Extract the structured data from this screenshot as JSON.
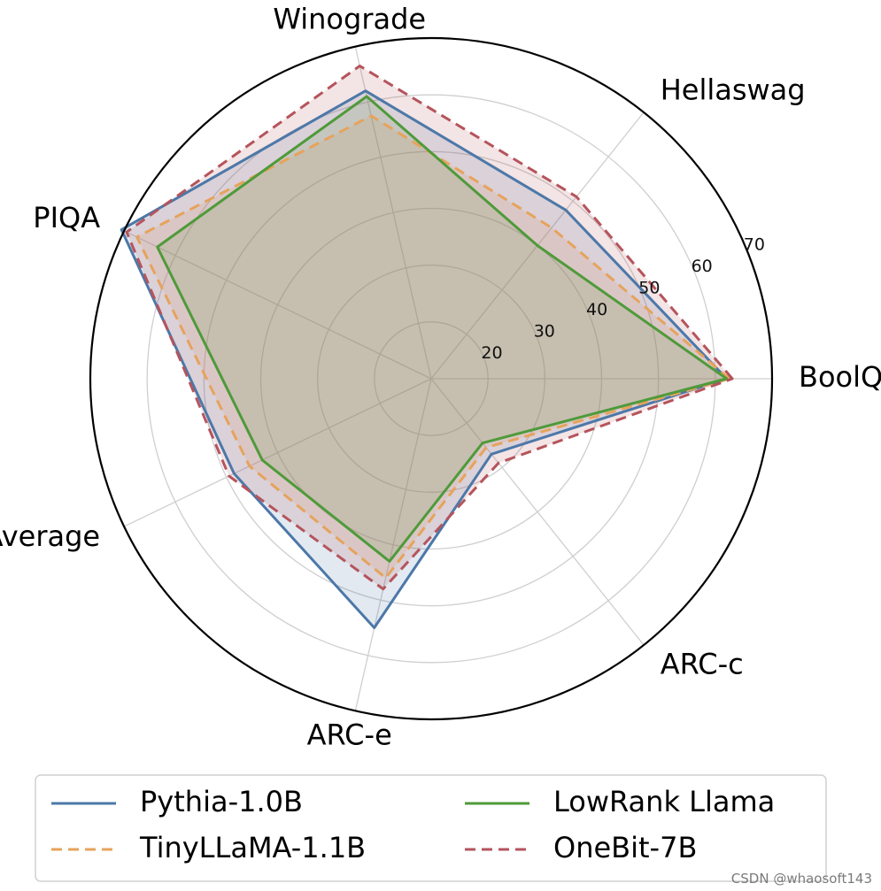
{
  "chart_data": {
    "type": "radar",
    "axes": [
      "BoolQ",
      "Hellaswag",
      "Winograde",
      "PIQA",
      "Average",
      "ARC-e",
      "ARC-c"
    ],
    "radial_ticks": [
      "20",
      "30",
      "40",
      "50",
      "60",
      "70"
    ],
    "radial_range": [
      10,
      70
    ],
    "grid": true,
    "legend_position": "bottom",
    "series": [
      {
        "name": "Pythia-1.0B",
        "color": "#4c78a8",
        "dash": "solid",
        "values": [
          62.0,
          48.0,
          62.0,
          70.5,
          48.5,
          55.0,
          27.0
        ]
      },
      {
        "name": "TinyLLaMA-1.1B",
        "color": "#e6a35c",
        "dash": "dashed",
        "values": [
          62.5,
          44.0,
          57.5,
          67.5,
          45.5,
          46.0,
          25.5
        ]
      },
      {
        "name": "LowRank Llama",
        "color": "#4f9a3a",
        "dash": "solid",
        "values": [
          62.0,
          40.0,
          61.0,
          63.5,
          43.0,
          43.0,
          24.5
        ]
      },
      {
        "name": "OneBit-7B",
        "color": "#b5545c",
        "dash": "dashed",
        "values": [
          63.0,
          51.0,
          66.5,
          69.5,
          49.5,
          48.0,
          29.0
        ]
      }
    ]
  },
  "watermark": "CSDN @whaosoft143"
}
